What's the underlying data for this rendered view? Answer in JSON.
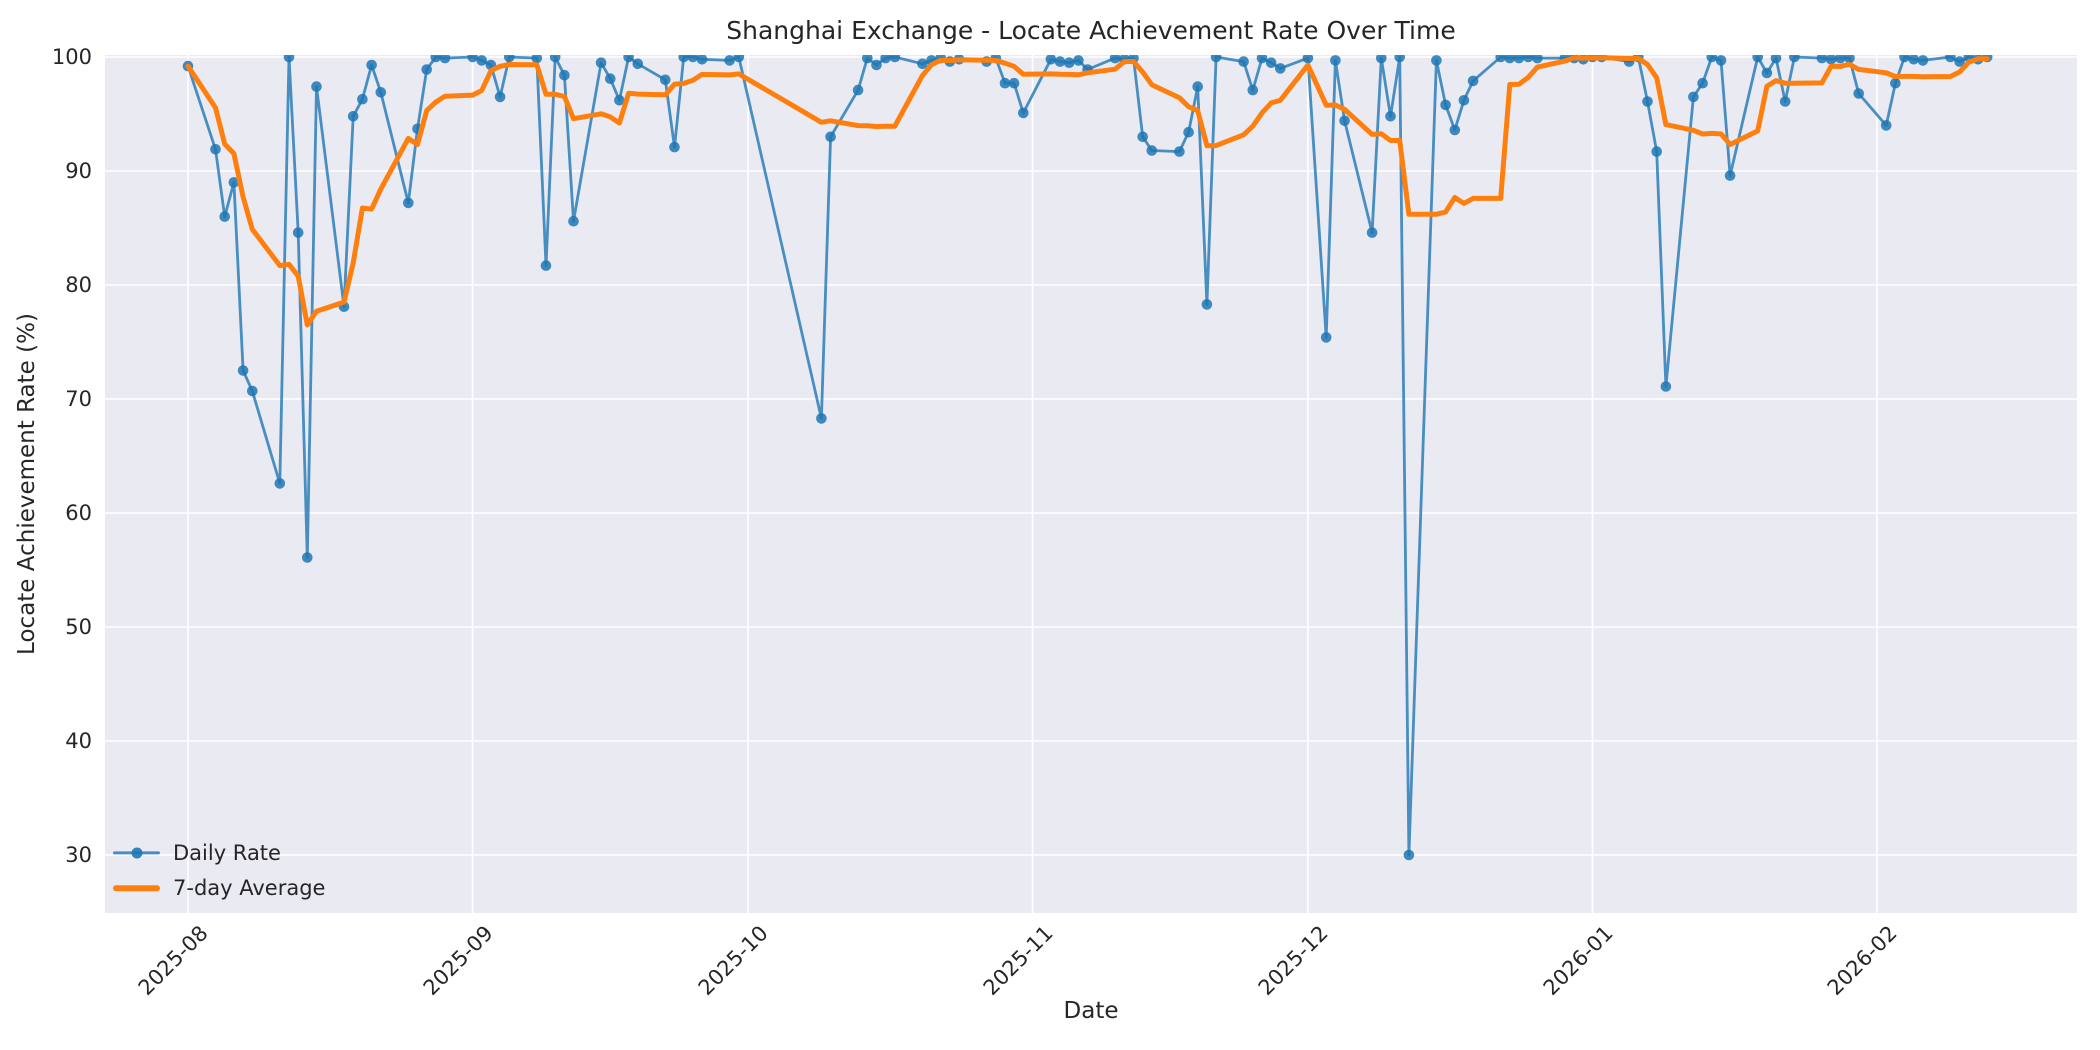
{
  "title": "Shanghai Exchange - Locate Achievement Rate Over Time",
  "axes": {
    "x_label": "Date",
    "y_label": "Locate Achievement Rate (%)",
    "x_tick_labels": [
      "2025-08",
      "2025-09",
      "2025-10",
      "2025-11",
      "2025-12",
      "2026-01",
      "2026-02"
    ],
    "y_tick_labels": [
      "100",
      "90",
      "80",
      "70",
      "60",
      "50",
      "40",
      "30"
    ]
  },
  "legend": {
    "position": "lower left",
    "items": [
      {
        "label": "Daily Rate"
      },
      {
        "label": "7-day Average"
      }
    ]
  },
  "colors": {
    "daily_rate": "#1f77b4",
    "seven_day_avg": "#ff7f0e",
    "plot_background": "#eaeaf2",
    "gridline": "#ffffff",
    "text": "#262626"
  },
  "chart_data": {
    "type": "line",
    "title": "Shanghai Exchange - Locate Achievement Rate Over Time",
    "xlabel": "Date",
    "ylabel": "Locate Achievement Rate (%)",
    "grid": true,
    "legend_position": "lower left",
    "ylim": [
      24.9,
      100.2
    ],
    "xlim_dates": [
      "2025-07-22",
      "2026-02-22"
    ],
    "y_ticks": [
      100,
      90,
      80,
      70,
      60,
      50,
      40,
      30
    ],
    "x_ticks": [
      {
        "label": "2025-08",
        "date": "2025-08-01"
      },
      {
        "label": "2025-09",
        "date": "2025-09-01"
      },
      {
        "label": "2025-10",
        "date": "2025-10-01"
      },
      {
        "label": "2025-11",
        "date": "2025-11-01"
      },
      {
        "label": "2025-12",
        "date": "2025-12-01"
      },
      {
        "label": "2026-01",
        "date": "2026-01-01"
      },
      {
        "label": "2026-02",
        "date": "2026-02-01"
      }
    ],
    "dates": [
      "2025-08-01",
      "2025-08-04",
      "2025-08-05",
      "2025-08-06",
      "2025-08-07",
      "2025-08-08",
      "2025-08-11",
      "2025-08-12",
      "2025-08-13",
      "2025-08-14",
      "2025-08-15",
      "2025-08-18",
      "2025-08-19",
      "2025-08-20",
      "2025-08-21",
      "2025-08-22",
      "2025-08-25",
      "2025-08-26",
      "2025-08-27",
      "2025-08-28",
      "2025-08-29",
      "2025-09-01",
      "2025-09-02",
      "2025-09-03",
      "2025-09-04",
      "2025-09-05",
      "2025-09-08",
      "2025-09-09",
      "2025-09-10",
      "2025-09-11",
      "2025-09-12",
      "2025-09-15",
      "2025-09-16",
      "2025-09-17",
      "2025-09-18",
      "2025-09-19",
      "2025-09-22",
      "2025-09-23",
      "2025-09-24",
      "2025-09-25",
      "2025-09-26",
      "2025-09-29",
      "2025-09-30",
      "2025-10-09",
      "2025-10-10",
      "2025-10-13",
      "2025-10-14",
      "2025-10-15",
      "2025-10-16",
      "2025-10-17",
      "2025-10-20",
      "2025-10-21",
      "2025-10-22",
      "2025-10-23",
      "2025-10-24",
      "2025-10-27",
      "2025-10-28",
      "2025-10-29",
      "2025-10-30",
      "2025-10-31",
      "2025-11-03",
      "2025-11-04",
      "2025-11-05",
      "2025-11-06",
      "2025-11-07",
      "2025-11-10",
      "2025-11-11",
      "2025-11-12",
      "2025-11-13",
      "2025-11-14",
      "2025-11-17",
      "2025-11-18",
      "2025-11-19",
      "2025-11-20",
      "2025-11-21",
      "2025-11-24",
      "2025-11-25",
      "2025-11-26",
      "2025-11-27",
      "2025-11-28",
      "2025-12-01",
      "2025-12-03",
      "2025-12-04",
      "2025-12-05",
      "2025-12-08",
      "2025-12-09",
      "2025-12-10",
      "2025-12-11",
      "2025-12-12",
      "2025-12-15",
      "2025-12-16",
      "2025-12-17",
      "2025-12-18",
      "2025-12-19",
      "2025-12-22",
      "2025-12-23",
      "2025-12-24",
      "2025-12-25",
      "2025-12-26",
      "2025-12-29",
      "2025-12-30",
      "2025-12-31",
      "2026-01-01",
      "2026-01-02",
      "2026-01-05",
      "2026-01-06",
      "2026-01-07",
      "2026-01-08",
      "2026-01-09",
      "2026-01-12",
      "2026-01-13",
      "2026-01-14",
      "2026-01-15",
      "2026-01-16",
      "2026-01-19",
      "2026-01-20",
      "2026-01-21",
      "2026-01-22",
      "2026-01-23",
      "2026-01-26",
      "2026-01-27",
      "2026-01-28",
      "2026-01-29",
      "2026-01-30",
      "2026-02-02",
      "2026-02-03",
      "2026-02-04",
      "2026-02-05",
      "2026-02-06",
      "2026-02-09",
      "2026-02-10",
      "2026-02-11",
      "2026-02-12",
      "2026-02-13"
    ],
    "series": [
      {
        "name": "Daily Rate",
        "style": "line+markers",
        "color": "#1f77b4",
        "values": [
          99.2,
          91.9,
          86.0,
          89.0,
          72.5,
          70.7,
          62.6,
          100,
          84.6,
          56.1,
          97.4,
          78.1,
          94.8,
          96.3,
          99.3,
          96.9,
          87.2,
          93.7,
          98.9,
          100,
          99.9,
          100,
          99.7,
          99.3,
          96.5,
          100,
          99.9,
          81.7,
          100,
          98.4,
          85.6,
          99.5,
          98.1,
          96.2,
          100,
          99.4,
          98.0,
          92.1,
          100,
          100,
          99.8,
          99.7,
          100,
          68.3,
          93.0,
          97.1,
          99.9,
          99.3,
          99.9,
          100,
          99.4,
          99.7,
          99.9,
          99.6,
          99.8,
          99.6,
          99.9,
          97.7,
          97.7,
          95.1,
          99.8,
          99.6,
          99.5,
          99.7,
          98.9,
          99.9,
          99.8,
          99.9,
          93.0,
          91.8,
          91.7,
          93.4,
          97.4,
          78.3,
          100,
          99.6,
          97.1,
          99.9,
          99.5,
          99.0,
          99.9,
          75.4,
          99.7,
          94.4,
          84.6,
          99.9,
          94.8,
          100,
          30.0,
          99.7,
          95.8,
          93.6,
          96.2,
          97.9,
          100,
          99.9,
          99.9,
          100,
          99.9,
          99.9,
          99.9,
          99.8,
          100,
          100,
          99.6,
          100,
          96.1,
          91.7,
          71.1,
          96.5,
          97.7,
          100,
          99.7,
          89.6,
          100,
          98.6,
          99.9,
          96.1,
          100,
          99.9,
          99.8,
          99.9,
          99.9,
          96.8,
          94.0,
          97.7,
          100,
          99.8,
          99.7,
          100,
          99.6,
          100,
          99.8,
          100
        ]
      },
      {
        "name": "7-day Average",
        "style": "line",
        "color": "#ff7f0e",
        "derivation": "rolling mean of Daily Rate over the last 7 points (min_periods=1)"
      }
    ]
  }
}
